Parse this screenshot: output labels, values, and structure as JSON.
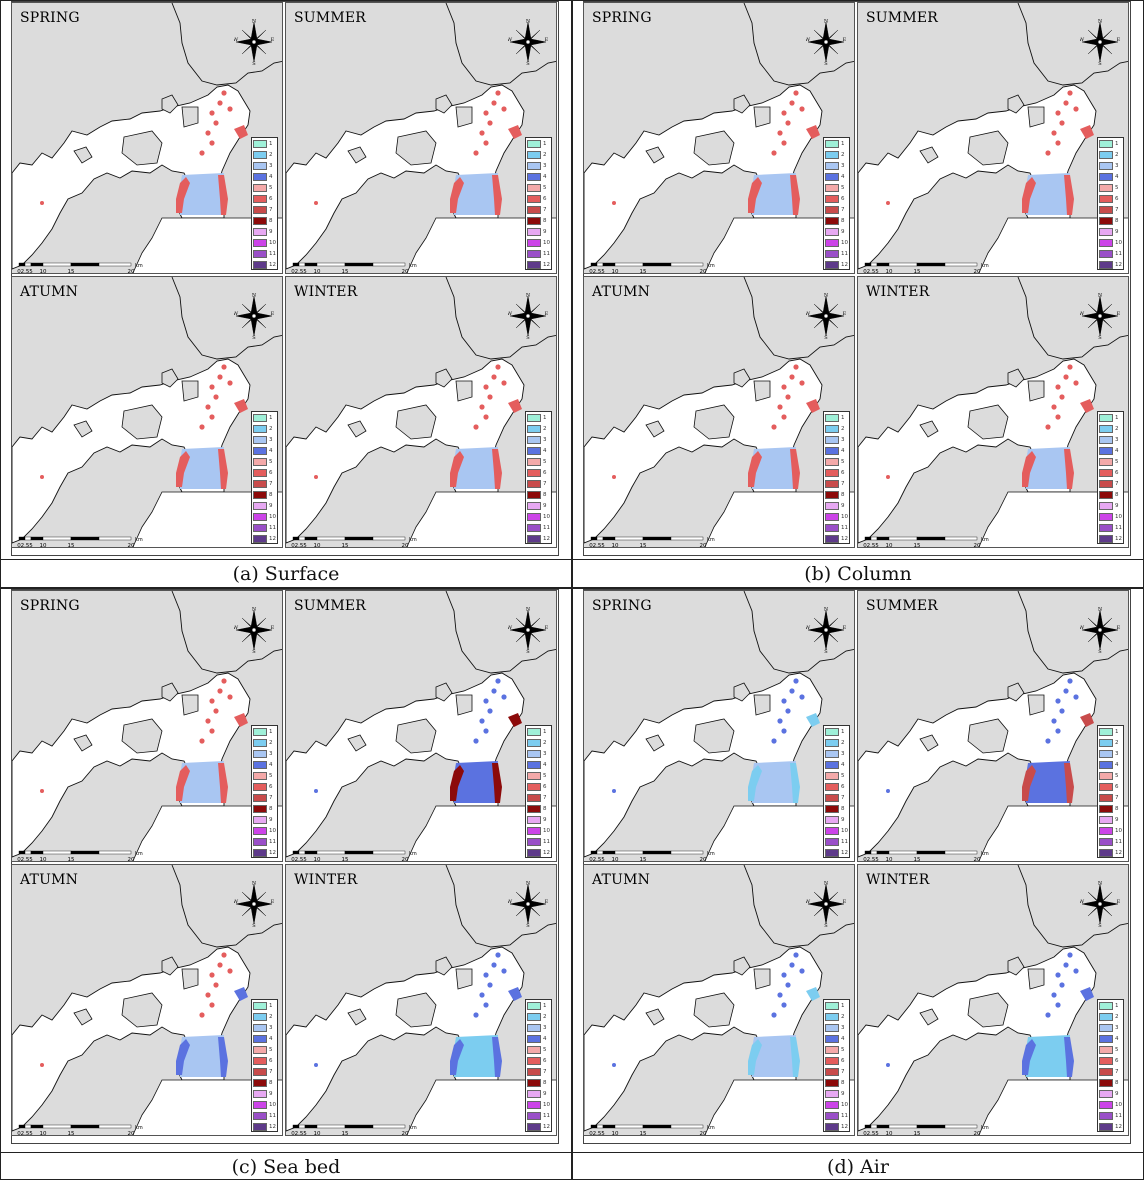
{
  "figure": {
    "captions": [
      "(a) Surface",
      "(b) Column",
      "(c) Sea bed",
      "(d) Air"
    ]
  },
  "compass": {
    "n": "N",
    "s": "S",
    "e": "E",
    "w": "W",
    "icon": "compass-rose-icon"
  },
  "scale_bar": {
    "labels": [
      "0",
      "2.5",
      "5",
      "10",
      "15",
      "20"
    ],
    "unit": "km"
  },
  "legend": {
    "classes": [
      {
        "label": "1",
        "color": "#9FF0D8"
      },
      {
        "label": "2",
        "color": "#7CCDF0"
      },
      {
        "label": "3",
        "color": "#A9C6F2"
      },
      {
        "label": "4",
        "color": "#5B72E0"
      },
      {
        "label": "5",
        "color": "#F4A9A9"
      },
      {
        "label": "6",
        "color": "#E45D5D"
      },
      {
        "label": "7",
        "color": "#C84B4B"
      },
      {
        "label": "8",
        "color": "#8C0A0A"
      },
      {
        "label": "9",
        "color": "#E7A8F2"
      },
      {
        "label": "10",
        "color": "#CC44E8"
      },
      {
        "label": "11",
        "color": "#9A4FC8"
      },
      {
        "label": "12",
        "color": "#5E3A8A"
      }
    ]
  },
  "quadrants": [
    {
      "caption": "(a) Surface",
      "panels": [
        {
          "season": "SPRING",
          "bay_class": 3,
          "coast_class": 6,
          "ne_class": 6
        },
        {
          "season": "SUMMER",
          "bay_class": 3,
          "coast_class": 6,
          "ne_class": 6
        },
        {
          "season": "ATUMN",
          "bay_class": 3,
          "coast_class": 6,
          "ne_class": 6
        },
        {
          "season": "WINTER",
          "bay_class": 3,
          "coast_class": 6,
          "ne_class": 6
        }
      ]
    },
    {
      "caption": "(b) Column",
      "panels": [
        {
          "season": "SPRING",
          "bay_class": 3,
          "coast_class": 6,
          "ne_class": 6
        },
        {
          "season": "SUMMER",
          "bay_class": 3,
          "coast_class": 6,
          "ne_class": 6
        },
        {
          "season": "ATUMN",
          "bay_class": 3,
          "coast_class": 6,
          "ne_class": 6
        },
        {
          "season": "WINTER",
          "bay_class": 3,
          "coast_class": 6,
          "ne_class": 6
        }
      ]
    },
    {
      "caption": "(c) Sea bed",
      "panels": [
        {
          "season": "SPRING",
          "bay_class": 3,
          "coast_class": 6,
          "ne_class": 6
        },
        {
          "season": "SUMMER",
          "bay_class": 4,
          "coast_class": 8,
          "ne_class": 4
        },
        {
          "season": "ATUMN",
          "bay_class": 3,
          "coast_class": 4,
          "ne_class": 6
        },
        {
          "season": "WINTER",
          "bay_class": 2,
          "coast_class": 4,
          "ne_class": 4
        }
      ]
    },
    {
      "caption": "(d) Air",
      "panels": [
        {
          "season": "SPRING",
          "bay_class": 3,
          "coast_class": 2,
          "ne_class": 4
        },
        {
          "season": "SUMMER",
          "bay_class": 4,
          "coast_class": 7,
          "ne_class": 4
        },
        {
          "season": "ATUMN",
          "bay_class": 3,
          "coast_class": 2,
          "ne_class": 4
        },
        {
          "season": "WINTER",
          "bay_class": 2,
          "coast_class": 4,
          "ne_class": 4
        }
      ]
    }
  ]
}
